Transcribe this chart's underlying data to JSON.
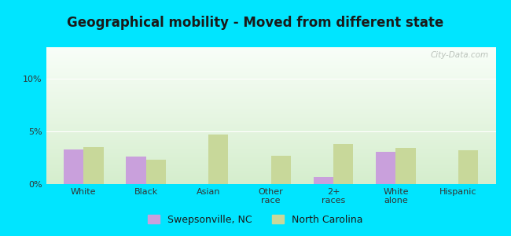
{
  "title": "Geographical mobility - Moved from different state",
  "categories": [
    "White",
    "Black",
    "Asian",
    "Other\nrace",
    "2+\nraces",
    "White\nalone",
    "Hispanic"
  ],
  "swepsonville": [
    3.3,
    2.6,
    0.0,
    0.0,
    0.7,
    3.1,
    0.0
  ],
  "north_carolina": [
    3.5,
    2.3,
    4.7,
    2.7,
    3.8,
    3.4,
    3.2
  ],
  "bar_color_swep": "#c9a0dc",
  "bar_color_nc": "#c8d89a",
  "outer_bg": "#00e5ff",
  "grad_top": "#f8fef8",
  "grad_bottom": "#d4edcc",
  "ylim": [
    0,
    13
  ],
  "yticks": [
    0,
    5,
    10
  ],
  "ytick_labels": [
    "0%",
    "5%",
    "10%"
  ],
  "bar_width": 0.32,
  "legend_swep": "Swepsonville, NC",
  "legend_nc": "North Carolina",
  "watermark": "City-Data.com",
  "title_fontsize": 12,
  "tick_fontsize": 8
}
